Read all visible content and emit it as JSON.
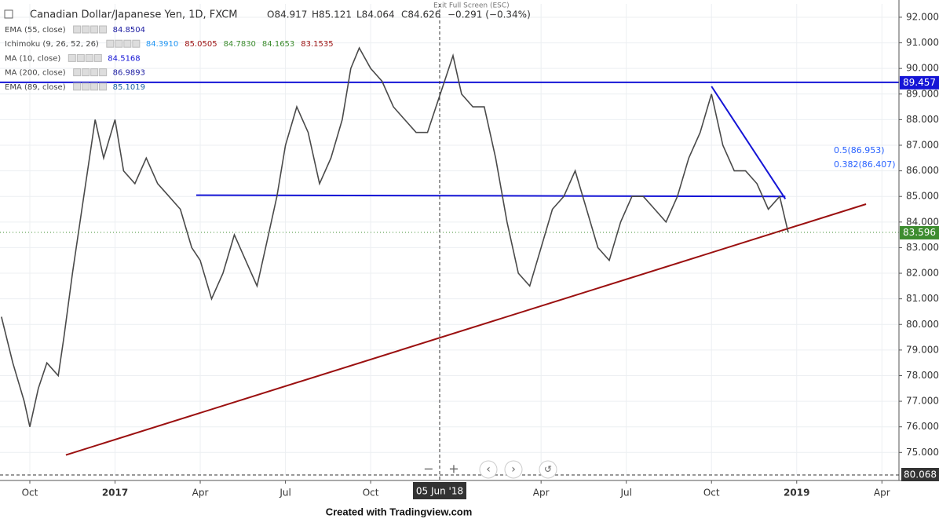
{
  "header": {
    "symbol": "Canadian Dollar/Japanese Yen, 1D, FXCM",
    "open": "O84.917",
    "high": "H85.121",
    "low": "L84.064",
    "close": "C84.626",
    "change": "−0.291 (−0.34%)",
    "indicators": [
      {
        "name": "EMA (55, close)",
        "values": [
          "84.8504"
        ]
      },
      {
        "name": "Ichimoku (9, 26, 52, 26)",
        "values": [
          "84.3910",
          "85.0505",
          "84.7830",
          "84.1653",
          "83.1535"
        ]
      },
      {
        "name": "MA (10, close)",
        "values": [
          "84.5168"
        ]
      },
      {
        "name": "MA (200, close)",
        "values": [
          "86.9893"
        ]
      },
      {
        "name": "EMA (89, close)",
        "values": [
          "85.1019"
        ]
      }
    ],
    "exit_hint": "Exit Full Screen (ESC)"
  },
  "chart_data": {
    "type": "line",
    "color": "#4a4a4a",
    "x": [
      -1.0,
      -0.6,
      -0.2,
      0.0,
      0.3,
      0.6,
      1.0,
      1.2,
      1.5,
      1.9,
      2.3,
      2.6,
      3.0,
      3.3,
      3.7,
      4.1,
      4.5,
      4.9,
      5.3,
      5.7,
      6.0,
      6.4,
      6.8,
      7.2,
      7.6,
      8.0,
      8.3,
      8.7,
      9.0,
      9.4,
      9.8,
      10.2,
      10.6,
      11.0,
      11.3,
      11.6,
      12.0,
      12.4,
      12.8,
      13.2,
      13.6,
      14.0,
      14.3,
      14.6,
      14.9,
      15.2,
      15.6,
      16.0,
      16.4,
      16.8,
      17.2,
      17.6,
      18.0,
      18.4,
      18.8,
      19.2,
      19.6,
      20.0,
      20.4,
      20.8,
      21.2,
      21.6,
      22.0,
      22.4,
      22.8,
      23.2,
      23.6,
      24.0,
      24.4,
      24.8,
      25.2,
      25.6,
      26.0,
      26.4,
      26.7
    ],
    "values": [
      80.3,
      78.5,
      77.0,
      76.0,
      77.5,
      78.5,
      78.0,
      79.5,
      82.0,
      85.0,
      88.0,
      86.5,
      88.0,
      86.0,
      85.5,
      86.5,
      85.5,
      85.0,
      84.5,
      83.0,
      82.5,
      81.0,
      82.0,
      83.5,
      82.5,
      81.5,
      83.0,
      85.0,
      87.0,
      88.5,
      87.5,
      85.5,
      86.5,
      88.0,
      90.0,
      90.8,
      90.0,
      89.5,
      88.5,
      88.0,
      87.5,
      87.5,
      88.5,
      89.5,
      90.5,
      89.0,
      88.5,
      88.5,
      86.5,
      84.0,
      82.0,
      81.5,
      83.0,
      84.5,
      85.0,
      86.0,
      84.5,
      83.0,
      82.5,
      84.0,
      85.0,
      85.0,
      84.5,
      84.0,
      85.0,
      86.5,
      87.5,
      89.0,
      87.0,
      86.0,
      86.0,
      85.5,
      84.5,
      85.0,
      83.6
    ],
    "xlim": [
      -1.05,
      30.6
    ],
    "ylim": [
      74.12,
      92.52
    ],
    "xticks": [
      {
        "value": 0,
        "label": "Oct"
      },
      {
        "value": 3,
        "label": "2017"
      },
      {
        "value": 6,
        "label": "Apr"
      },
      {
        "value": 9,
        "label": "Jul"
      },
      {
        "value": 12,
        "label": "Oct"
      },
      {
        "value": 18,
        "label": "Apr"
      },
      {
        "value": 21,
        "label": "Jul"
      },
      {
        "value": 24,
        "label": "Oct"
      },
      {
        "value": 27,
        "label": "2019"
      },
      {
        "value": 30,
        "label": "Apr"
      }
    ],
    "yticks": [
      {
        "value": 75,
        "label": "75.000"
      },
      {
        "value": 76,
        "label": "76.000"
      },
      {
        "value": 77,
        "label": "77.000"
      },
      {
        "value": 78,
        "label": "78.000"
      },
      {
        "value": 79,
        "label": "79.000"
      },
      {
        "value": 80,
        "label": "80.000"
      },
      {
        "value": 81,
        "label": "81.000"
      },
      {
        "value": 82,
        "label": "82.000"
      },
      {
        "value": 83,
        "label": "83.000"
      },
      {
        "value": 84,
        "label": "84.000"
      },
      {
        "value": 85,
        "label": "85.000"
      },
      {
        "value": 86,
        "label": "86.000"
      },
      {
        "value": 87,
        "label": "87.000"
      },
      {
        "value": 88,
        "label": "88.000"
      },
      {
        "value": 89,
        "label": "89.000"
      },
      {
        "value": 90,
        "label": "90.000"
      },
      {
        "value": 91,
        "label": "91.000"
      },
      {
        "value": 92,
        "label": "92.000"
      }
    ],
    "grid": true,
    "hline": {
      "value": 89.457,
      "color": "#1515d6"
    },
    "last_price": {
      "value": 83.596,
      "color": "#3d8c2f"
    },
    "crosshair_price": 80.068,
    "crosshair_date": "05 Jun '18",
    "trendlines": [
      {
        "x": [
          1.27,
          29.44
        ],
        "y": [
          74.9,
          84.7
        ],
        "color": "#9b1010"
      },
      {
        "x": [
          5.86,
          26.6
        ],
        "y": [
          85.05,
          85.0
        ],
        "color": "#1515d6"
      },
      {
        "x": [
          24.0,
          26.6
        ],
        "y": [
          89.3,
          84.9
        ],
        "color": "#1515d6"
      }
    ],
    "fib_labels": [
      "0.5(86.953)",
      "0.382(86.407)"
    ]
  },
  "footer": "Created with Tradingview.com"
}
